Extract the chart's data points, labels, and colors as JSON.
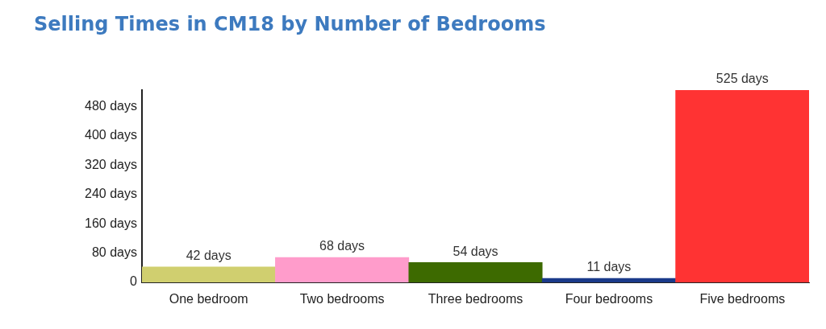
{
  "chart_data": {
    "type": "bar",
    "title": "Selling Times in CM18 by Number of Bedrooms",
    "categories": [
      "One bedroom",
      "Two bedrooms",
      "Three bedrooms",
      "Four bedrooms",
      "Five bedrooms"
    ],
    "values": [
      42,
      68,
      54,
      11,
      525
    ],
    "colors": [
      "#d0cf6f",
      "#ff9ccb",
      "#3d6a00",
      "#1a3a8a",
      "#ff3333"
    ],
    "value_labels": [
      "42 days",
      "68 days",
      "54 days",
      "11 days",
      "525 days"
    ],
    "ylim": [
      0,
      525
    ],
    "yticks": [
      0,
      {
        "value": 80,
        "label": "80 days"
      },
      {
        "value": 160,
        "label": "160 days"
      },
      {
        "value": 240,
        "label": "240 days"
      },
      {
        "value": 320,
        "label": "320 days"
      },
      {
        "value": 400,
        "label": "400 days"
      },
      {
        "value": 480,
        "label": "480 days"
      }
    ],
    "grid": false,
    "legend": false
  }
}
